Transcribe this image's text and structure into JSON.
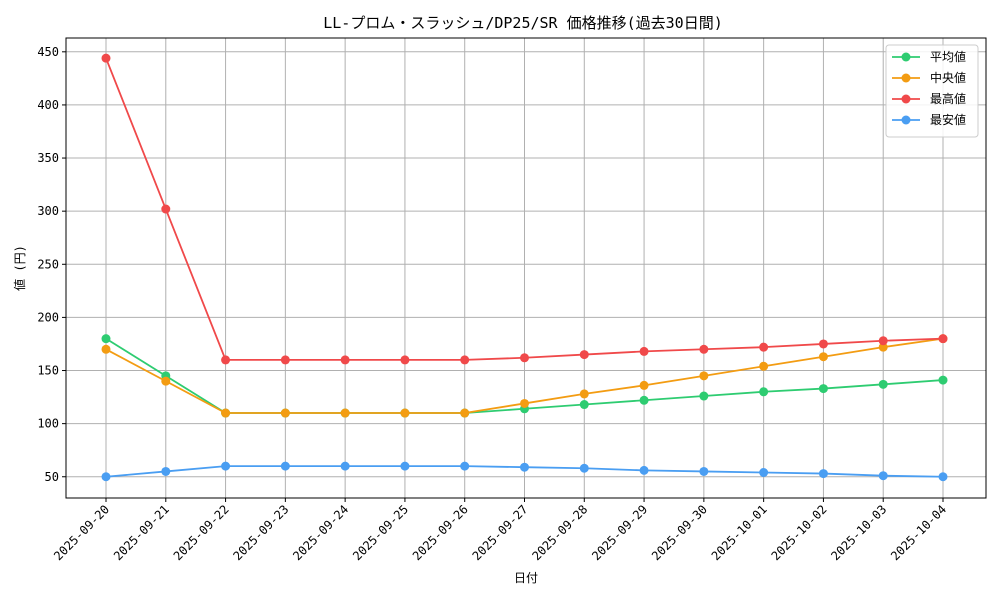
{
  "chart_data": {
    "type": "line",
    "title": "LL-プロム・スラッシュ/DP25/SR 価格推移(過去30日間)",
    "xlabel": "日付",
    "ylabel": "値 (円)",
    "ylim": [
      30,
      463
    ],
    "yticks": [
      50,
      100,
      150,
      200,
      250,
      300,
      350,
      400,
      450
    ],
    "grid": true,
    "legend_position": "top-right",
    "categories": [
      "2025-09-20",
      "2025-09-21",
      "2025-09-22",
      "2025-09-23",
      "2025-09-24",
      "2025-09-25",
      "2025-09-26",
      "2025-09-27",
      "2025-09-28",
      "2025-09-29",
      "2025-09-30",
      "2025-10-01",
      "2025-10-02",
      "2025-10-03",
      "2025-10-04"
    ],
    "series": [
      {
        "name": "平均値",
        "color": "#2ecc71",
        "values": [
          180,
          145,
          110,
          110,
          110,
          110,
          110,
          114,
          118,
          122,
          126,
          130,
          133,
          137,
          141
        ]
      },
      {
        "name": "中央値",
        "color": "#f39c12",
        "values": [
          170,
          140,
          110,
          110,
          110,
          110,
          110,
          119,
          128,
          136,
          145,
          154,
          163,
          172,
          180
        ]
      },
      {
        "name": "最高値",
        "color": "#f0494a",
        "values": [
          444,
          302,
          160,
          160,
          160,
          160,
          160,
          162,
          165,
          168,
          170,
          172,
          175,
          178,
          180
        ]
      },
      {
        "name": "最安値",
        "color": "#4a9ef2",
        "values": [
          50,
          55,
          60,
          60,
          60,
          60,
          60,
          59,
          58,
          56,
          55,
          54,
          53,
          51,
          50
        ]
      }
    ]
  }
}
